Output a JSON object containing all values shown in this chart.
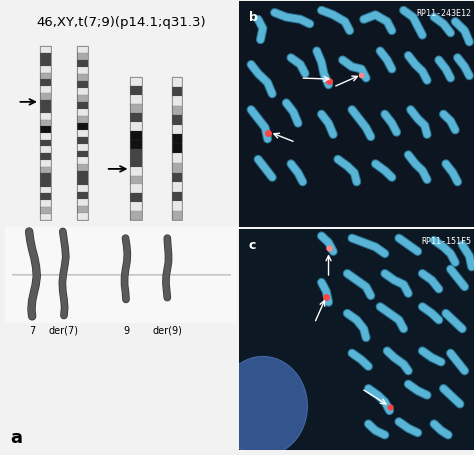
{
  "title": "46,XY,t(7;9)(p14.1;q31.3)",
  "title_fontsize": 10,
  "bg_color": "#f2f2f2",
  "left_panel_bg": "#f2f2f2",
  "right_top_bg": "#0d1520",
  "right_bot_bg": "#0d1825",
  "label_a": "a",
  "label_b": "b",
  "label_c": "c",
  "label_b_tag": "RP11-243E12",
  "label_c_tag": "RP11-151F5",
  "chr_labels": [
    "7",
    "der(7)",
    "9",
    "der(9)"
  ],
  "chr_color": "#5ab4d6",
  "dot_color": "#ff5555",
  "line_color": "#bbbbbb",
  "white": "#ffffff",
  "black": "#000000",
  "dark_band": "#1a1a1a",
  "light_band": "#d0d0d0",
  "mid_band": "#888888"
}
